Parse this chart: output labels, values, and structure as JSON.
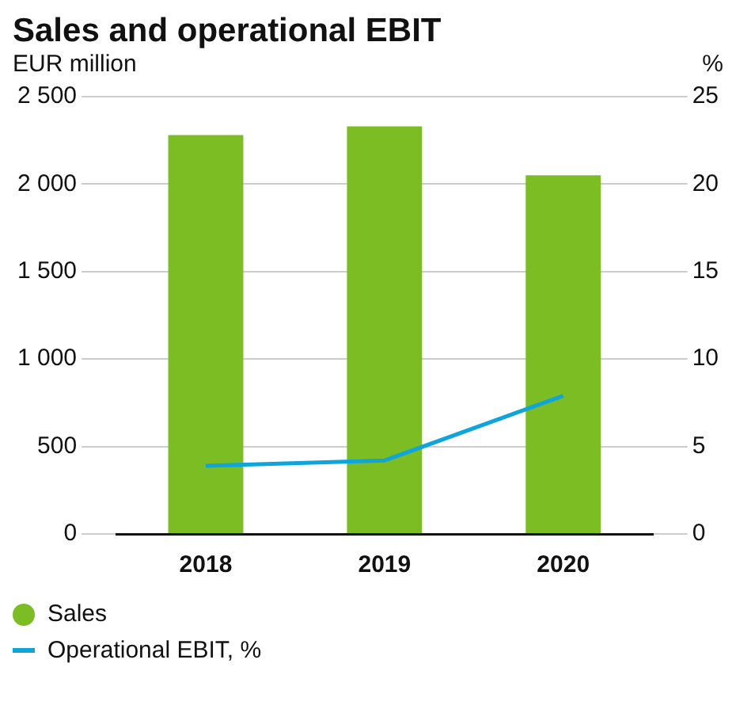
{
  "chart_data": {
    "type": "bar",
    "title": "Sales and operational EBIT",
    "ylabel": "EUR million",
    "y2label": "%",
    "categories": [
      "2018",
      "2019",
      "2020"
    ],
    "series": [
      {
        "name": "Sales",
        "color": "#7bbd22",
        "values": [
          2280,
          2330,
          2050
        ]
      },
      {
        "name": "Operational EBIT, %",
        "type": "line",
        "axis": "y2",
        "color": "#0ea5dc",
        "values": [
          3.9,
          4.2,
          7.9
        ]
      }
    ],
    "ylim": [
      0,
      2500
    ],
    "yticks": [
      0,
      500,
      {
        "value": 1000,
        "label": "1 000"
      },
      {
        "value": 1500,
        "label": "1 500"
      },
      {
        "value": 2000,
        "label": "2 000"
      },
      {
        "value": 2500,
        "label": "2 500"
      }
    ],
    "y2lim": [
      0,
      25
    ],
    "y2ticks": [
      0,
      5,
      10,
      15,
      20,
      25
    ],
    "grid": "y",
    "legend": "bottom",
    "marker": "none"
  }
}
